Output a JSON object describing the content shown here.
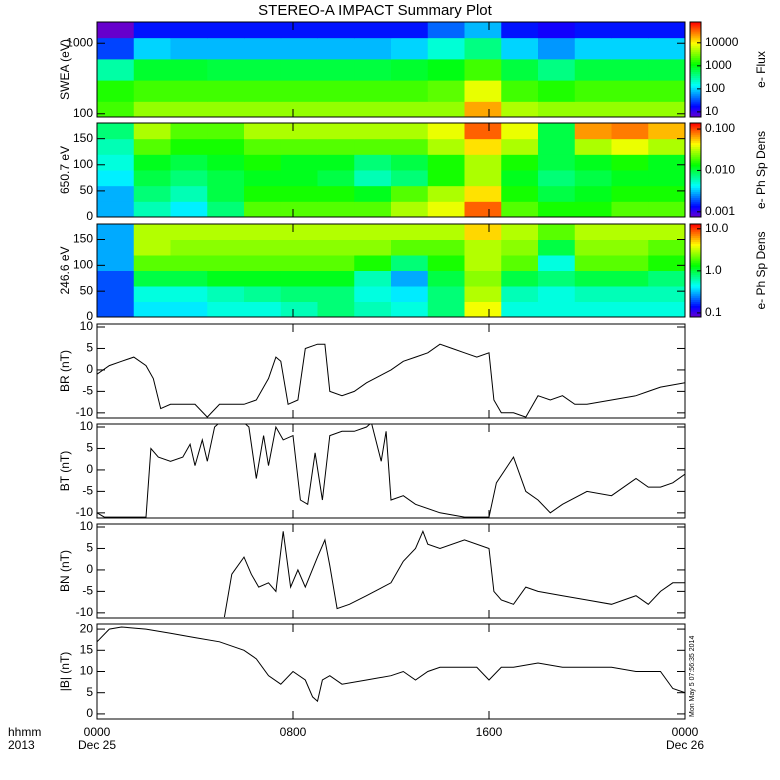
{
  "title": "STEREO-A IMPACT Summary Plot",
  "stamp": "Mon May 5 07:56:35 2014",
  "xaxis": {
    "xlim": [
      0,
      24
    ],
    "xticks": [
      {
        "value": 0,
        "label": "0000"
      },
      {
        "value": 8,
        "label": "0800"
      },
      {
        "value": 16,
        "label": "1600"
      },
      {
        "value": 24,
        "label": "0000"
      }
    ],
    "row_labels": [
      "hhmm",
      "2013"
    ],
    "date_labels": [
      "Dec 25",
      "Dec 26"
    ]
  },
  "chart_data": [
    {
      "type": "heatmap",
      "ylabel": "SWEA (eV)",
      "colorbar_label": "e- Flux",
      "ylog": true,
      "ylim": [
        90,
        2000
      ],
      "yticks": [
        100,
        1000
      ],
      "zlim": [
        6,
        80000
      ],
      "zticks": [
        10,
        100,
        1000,
        10000
      ],
      "xbins": [
        0,
        1.5,
        3,
        4.5,
        6,
        7.5,
        9,
        10.5,
        12,
        13.5,
        15,
        16.5,
        18,
        19.5,
        21,
        22.5,
        24
      ],
      "ybins": [
        90,
        150,
        300,
        600,
        1200,
        2000
      ],
      "z": [
        [
          2000,
          4000,
          4000,
          4000,
          4000,
          4000,
          4000,
          4000,
          4000,
          4000,
          20000,
          5000,
          4000,
          4000,
          4000,
          4000
        ],
        [
          1500,
          2000,
          2000,
          2000,
          2000,
          2000,
          2000,
          2000,
          2000,
          2500,
          8000,
          2000,
          1500,
          2000,
          2000,
          2000
        ],
        [
          300,
          800,
          800,
          700,
          700,
          700,
          700,
          700,
          800,
          1000,
          2000,
          700,
          400,
          700,
          700,
          700
        ],
        [
          30,
          100,
          80,
          80,
          80,
          80,
          80,
          80,
          100,
          200,
          400,
          100,
          60,
          100,
          100,
          100
        ],
        [
          6,
          20,
          20,
          20,
          20,
          20,
          20,
          20,
          20,
          40,
          80,
          20,
          15,
          20,
          20,
          20
        ]
      ]
    },
    {
      "type": "heatmap",
      "ylabel": "650.7 eV",
      "colorbar_label": "e- Ph Sp Dens",
      "ylog": false,
      "ylim": [
        0,
        180
      ],
      "yticks": [
        0,
        50,
        100,
        150
      ],
      "zlim": [
        0.00075,
        0.14
      ],
      "zticks": [
        0.001,
        {
          "value": 0.01,
          "label": "0.010"
        },
        {
          "value": 0.1,
          "label": "0.100"
        }
      ],
      "xbins": [
        0,
        1.5,
        3,
        4.5,
        6,
        7.5,
        9,
        10.5,
        12,
        13.5,
        15,
        16.5,
        18,
        19.5,
        21,
        22.5,
        24
      ],
      "ybins": [
        0,
        30,
        60,
        90,
        120,
        150,
        180
      ],
      "z": [
        [
          0.003,
          0.006,
          0.004,
          0.008,
          0.02,
          0.02,
          0.02,
          0.02,
          0.03,
          0.04,
          0.09,
          0.02,
          0.015,
          0.015,
          0.02,
          0.02
        ],
        [
          0.003,
          0.008,
          0.006,
          0.01,
          0.015,
          0.015,
          0.015,
          0.012,
          0.02,
          0.03,
          0.05,
          0.015,
          0.01,
          0.012,
          0.015,
          0.015
        ],
        [
          0.004,
          0.01,
          0.008,
          0.01,
          0.012,
          0.012,
          0.01,
          0.006,
          0.008,
          0.015,
          0.03,
          0.012,
          0.008,
          0.01,
          0.012,
          0.012
        ],
        [
          0.005,
          0.012,
          0.01,
          0.012,
          0.015,
          0.012,
          0.012,
          0.008,
          0.01,
          0.015,
          0.03,
          0.015,
          0.01,
          0.012,
          0.015,
          0.012
        ],
        [
          0.006,
          0.02,
          0.015,
          0.015,
          0.02,
          0.02,
          0.02,
          0.02,
          0.02,
          0.03,
          0.05,
          0.03,
          0.01,
          0.03,
          0.04,
          0.03
        ],
        [
          0.008,
          0.03,
          0.02,
          0.02,
          0.03,
          0.03,
          0.03,
          0.03,
          0.03,
          0.04,
          0.09,
          0.04,
          0.01,
          0.07,
          0.08,
          0.06
        ]
      ]
    },
    {
      "type": "heatmap",
      "ylabel": "246.6 eV",
      "colorbar_label": "e- Ph Sp Dens",
      "ylog": false,
      "ylim": [
        0,
        180
      ],
      "yticks": [
        0,
        50,
        100,
        150
      ],
      "zlim": [
        0.08,
        13
      ],
      "zticks": [
        0.1,
        {
          "value": 1,
          "label": "1.0"
        },
        {
          "value": 10,
          "label": "10.0"
        }
      ],
      "xbins": [
        0,
        1.5,
        3,
        4.5,
        6,
        7.5,
        9,
        10.5,
        12,
        13.5,
        15,
        16.5,
        18,
        19.5,
        21,
        22.5,
        24
      ],
      "ybins": [
        0,
        30,
        60,
        90,
        120,
        150,
        180
      ],
      "z": [
        [
          0.2,
          0.4,
          0.4,
          0.5,
          0.5,
          0.6,
          0.8,
          0.6,
          0.5,
          0.8,
          4,
          0.5,
          0.5,
          0.5,
          0.5,
          0.5
        ],
        [
          0.2,
          0.5,
          0.5,
          0.6,
          0.7,
          0.8,
          0.8,
          0.5,
          0.4,
          0.8,
          3,
          0.6,
          0.5,
          0.6,
          0.6,
          0.6
        ],
        [
          0.2,
          1,
          1,
          1.2,
          1.2,
          1.2,
          1.2,
          0.6,
          0.3,
          1,
          2.5,
          1,
          0.8,
          1,
          1,
          0.8
        ],
        [
          0.3,
          2,
          2,
          2,
          2,
          2,
          2,
          1.5,
          0.8,
          1.5,
          3,
          2,
          0.5,
          2,
          2,
          1.5
        ],
        [
          0.3,
          3,
          2.5,
          2.5,
          2.5,
          2.5,
          2.5,
          2.5,
          2,
          2,
          3,
          2.5,
          1,
          2.5,
          2.5,
          2
        ],
        [
          0.3,
          3,
          3,
          3,
          3,
          3,
          3,
          3,
          3,
          3,
          5,
          3,
          2,
          3,
          3,
          3
        ]
      ]
    },
    {
      "type": "line",
      "ylabel": "BR (nT)",
      "ylim": [
        -11.2,
        10.7
      ],
      "yticks": [
        -10,
        -5,
        0,
        5,
        10
      ],
      "color": "#000000",
      "x": [
        0,
        0.5,
        1,
        1.5,
        2,
        2.3,
        2.6,
        3,
        4,
        4.5,
        5,
        6,
        6.5,
        7,
        7.3,
        7.5,
        7.8,
        8.2,
        8.5,
        9,
        9.3,
        9.5,
        10,
        10.5,
        11,
        12,
        12.5,
        13,
        13.5,
        14,
        14.5,
        15,
        15.5,
        16,
        16.2,
        16.5,
        17,
        17.5,
        18,
        18.5,
        19,
        19.5,
        20,
        21,
        22,
        22.5,
        23,
        24
      ],
      "values": [
        -1,
        1,
        2,
        3,
        1,
        -2,
        -9,
        -8,
        -8,
        -11,
        -8,
        -8,
        -7,
        -2,
        3,
        2,
        -8,
        -7,
        5,
        6,
        6,
        -5,
        -6,
        -5,
        -3,
        0,
        2,
        3,
        4,
        6,
        5,
        4,
        3,
        4,
        -7,
        -10,
        -10,
        -11,
        -6,
        -7,
        -6,
        -8,
        -8,
        -7,
        -6,
        -5,
        -4,
        -3
      ]
    },
    {
      "type": "line",
      "ylabel": "BT (nT)",
      "ylim": [
        -11.2,
        10.7
      ],
      "yticks": [
        -10,
        -5,
        0,
        5,
        10
      ],
      "color": "#000000",
      "x": [
        0,
        0.3,
        1,
        2,
        2.2,
        2.5,
        3,
        3.5,
        3.8,
        4,
        4.3,
        4.5,
        4.8,
        5,
        6,
        6.2,
        6.5,
        6.8,
        7,
        7.3,
        7.6,
        8,
        8.3,
        8.6,
        8.9,
        9.2,
        9.5,
        10,
        10.5,
        11,
        11.2,
        11.6,
        11.8,
        12,
        12.5,
        13,
        14,
        15,
        16,
        16.3,
        17,
        17.5,
        18,
        18.5,
        19,
        20,
        21,
        22,
        22.5,
        23,
        23.5,
        24
      ],
      "values": [
        -10,
        -11,
        -11,
        -11,
        5,
        3,
        2,
        3,
        6,
        1,
        7,
        2,
        10,
        11,
        11,
        10,
        -2,
        8,
        1,
        10,
        7,
        8,
        -7,
        -8,
        4,
        -7,
        8,
        9,
        9,
        10,
        11,
        2,
        9,
        -7,
        -6,
        -8,
        -10,
        -11,
        -11,
        -3,
        3,
        -5,
        -7,
        -10,
        -8,
        -5,
        -6,
        -2,
        -4,
        -4,
        -3,
        -1
      ]
    },
    {
      "type": "line",
      "ylabel": "BN (nT)",
      "ylim": [
        -11.2,
        10.7
      ],
      "yticks": [
        -10,
        -5,
        0,
        5,
        10
      ],
      "color": "#000000",
      "x": [
        5.2,
        5.5,
        6,
        6.3,
        6.6,
        7,
        7.3,
        7.6,
        7.9,
        8.2,
        8.5,
        9,
        9.3,
        9.5,
        9.8,
        10.3,
        11,
        12,
        12.5,
        13,
        13.3,
        13.5,
        14,
        15,
        16,
        16.2,
        16.5,
        17,
        17.5,
        18,
        19,
        20,
        21,
        22,
        22.5,
        23,
        23.5,
        24
      ],
      "values": [
        -11,
        -1,
        3,
        -1,
        -4,
        -3,
        -5,
        9,
        -4,
        0,
        -4,
        3,
        7,
        1,
        -9,
        -8,
        -6,
        -3,
        2,
        5,
        9,
        6,
        5,
        7,
        5,
        -5,
        -7,
        -8,
        -4,
        -5,
        -6,
        -7,
        -8,
        -6,
        -8,
        -5,
        -3,
        -3
      ]
    },
    {
      "type": "line",
      "ylabel": "|B| (nT)",
      "ylim": [
        -1.2,
        21.2
      ],
      "yticks": [
        0,
        5,
        10,
        15,
        20
      ],
      "color": "#000000",
      "x": [
        0,
        0.5,
        1,
        2,
        3,
        4,
        5,
        6,
        6.5,
        7,
        7.5,
        8,
        8.5,
        8.8,
        9,
        9.2,
        9.5,
        10,
        11,
        12,
        12.5,
        13,
        13.5,
        14,
        15,
        15.5,
        16,
        16.5,
        17,
        18,
        19,
        20,
        21,
        22,
        23,
        23.5,
        24
      ],
      "values": [
        17,
        20,
        20.5,
        20,
        19,
        18,
        17,
        15,
        13,
        9,
        7,
        10,
        8,
        4,
        3,
        8,
        9,
        7,
        8,
        9,
        10,
        8,
        10,
        11,
        11,
        11,
        8,
        11,
        11,
        12,
        11,
        11,
        11,
        10,
        10,
        6,
        5
      ]
    }
  ]
}
